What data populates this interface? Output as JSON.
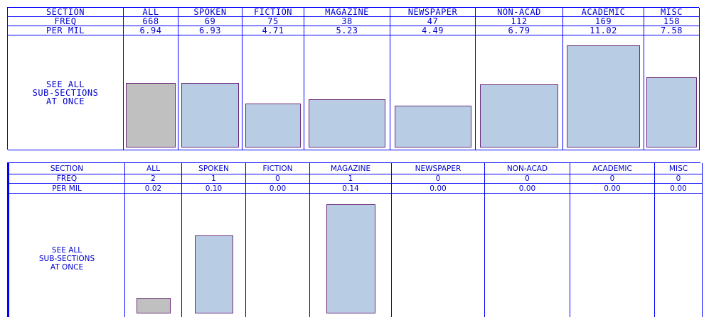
{
  "tables": [
    {
      "header": "SECTION",
      "columns": [
        "ALL",
        "SPOKEN",
        "FICTION",
        "MAGAZINE",
        "NEWSPAPER",
        "NON-ACAD",
        "ACADEMIC",
        "MISC"
      ],
      "freq_label": "FREQ",
      "freq": [
        668,
        69,
        75,
        38,
        47,
        112,
        169,
        158
      ],
      "per_mil_label": "PER MIL",
      "per_mil": [
        6.94,
        6.93,
        4.71,
        5.23,
        4.49,
        6.79,
        11.02,
        7.58
      ],
      "link_lines": [
        "SEE ALL",
        "SUB-SECTIONS",
        "AT ONCE"
      ]
    },
    {
      "header": "SECTION",
      "columns": [
        "ALL",
        "SPOKEN",
        "FICTION",
        "MAGAZINE",
        "NEWSPAPER",
        "NON-ACAD",
        "ACADEMIC",
        "MISC"
      ],
      "freq_label": "FREQ",
      "freq": [
        2,
        1,
        0,
        1,
        0,
        0,
        0,
        0
      ],
      "per_mil_label": "PER MIL",
      "per_mil": [
        0.02,
        {
          "value": 0.1,
          "label": "0.10"
        },
        {
          "value": 0,
          "label": "0.00"
        },
        0.14,
        {
          "value": 0,
          "label": "0.00"
        },
        {
          "value": 0,
          "label": "0.00"
        },
        {
          "value": 0,
          "label": "0.00"
        },
        {
          "value": 0,
          "label": "0.00"
        }
      ],
      "link_lines": [
        "SEE ALL",
        "SUB-SECTIONS",
        "AT ONCE"
      ]
    }
  ]
}
